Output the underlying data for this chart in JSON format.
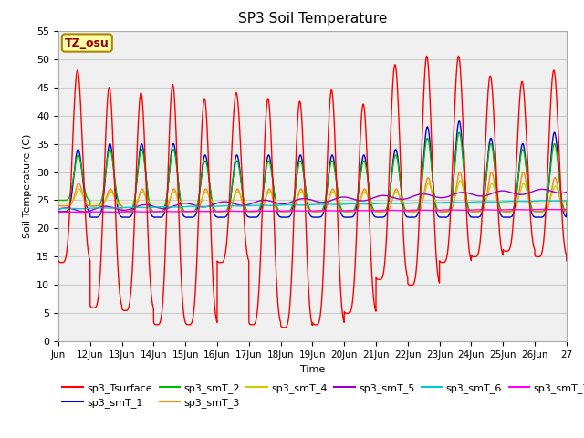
{
  "title": "SP3 Soil Temperature",
  "xlabel": "Time",
  "ylabel": "Soil Temperature (C)",
  "ylim": [
    0,
    55
  ],
  "xlim": [
    0,
    16
  ],
  "annotation": "TZ_osu",
  "plot_bg": "#f0f0f0",
  "series_colors": {
    "sp3_Tsurface": "#ff0000",
    "sp3_smT_1": "#0000cc",
    "sp3_smT_2": "#00bb00",
    "sp3_smT_3": "#ff8800",
    "sp3_smT_4": "#cccc00",
    "sp3_smT_5": "#9900cc",
    "sp3_smT_6": "#00cccc",
    "sp3_smT_7": "#ff00ff"
  },
  "xtick_labels": [
    "Jun",
    "12Jun",
    "13Jun",
    "14Jun",
    "15Jun",
    "16Jun",
    "17Jun",
    "18Jun",
    "19Jun",
    "20Jun",
    "21Jun",
    "22Jun",
    "23Jun",
    "24Jun",
    "25Jun",
    "26Jun",
    "27"
  ],
  "ytick_values": [
    0,
    5,
    10,
    15,
    20,
    25,
    30,
    35,
    40,
    45,
    50,
    55
  ],
  "surface_peaks": [
    48,
    45,
    44,
    45.5,
    43,
    44,
    43,
    42.5,
    44.5,
    42,
    49,
    50.5,
    50.5,
    47,
    46,
    48
  ],
  "surface_troughs": [
    14,
    6,
    5.5,
    3,
    3,
    14,
    3,
    2.5,
    3,
    5,
    11,
    10,
    14,
    15,
    16,
    15
  ],
  "smT1_peaks": [
    34,
    35,
    35,
    35,
    33,
    33,
    33,
    33,
    33,
    33,
    34,
    38,
    39,
    36,
    35,
    37
  ],
  "smT1_troughs": [
    23,
    22,
    22,
    22,
    22,
    22,
    22,
    22,
    22,
    22,
    22,
    22,
    22,
    22,
    22,
    22
  ],
  "smT2_peaks": [
    33,
    34,
    34,
    34,
    32,
    32,
    32,
    32,
    32,
    32,
    33,
    36,
    37,
    35,
    34,
    35
  ],
  "smT2_troughs": [
    25,
    24,
    23,
    23,
    23,
    23,
    23,
    23,
    23,
    23,
    23,
    23,
    23,
    23,
    23,
    23
  ],
  "smT3_peaks": [
    28,
    27,
    27,
    27,
    27,
    27,
    27,
    27,
    27,
    27,
    27,
    29,
    30,
    30,
    30,
    29
  ],
  "smT3_troughs": [
    24,
    24,
    23,
    23,
    23,
    23,
    23,
    23,
    23,
    23,
    23,
    23,
    23,
    23,
    23,
    23
  ],
  "smT4_peaks": [
    27,
    26.5,
    26.5,
    26.5,
    26.5,
    26.5,
    26.5,
    26.5,
    26.5,
    26.5,
    26.5,
    28,
    28.5,
    28,
    28,
    27.5
  ],
  "smT4_troughs": [
    24.5,
    24.5,
    24.5,
    24.5,
    24.5,
    24.5,
    24.5,
    24.5,
    24.5,
    24.5,
    24.5,
    24.5,
    24.5,
    24.5,
    24.5,
    24.5
  ]
}
